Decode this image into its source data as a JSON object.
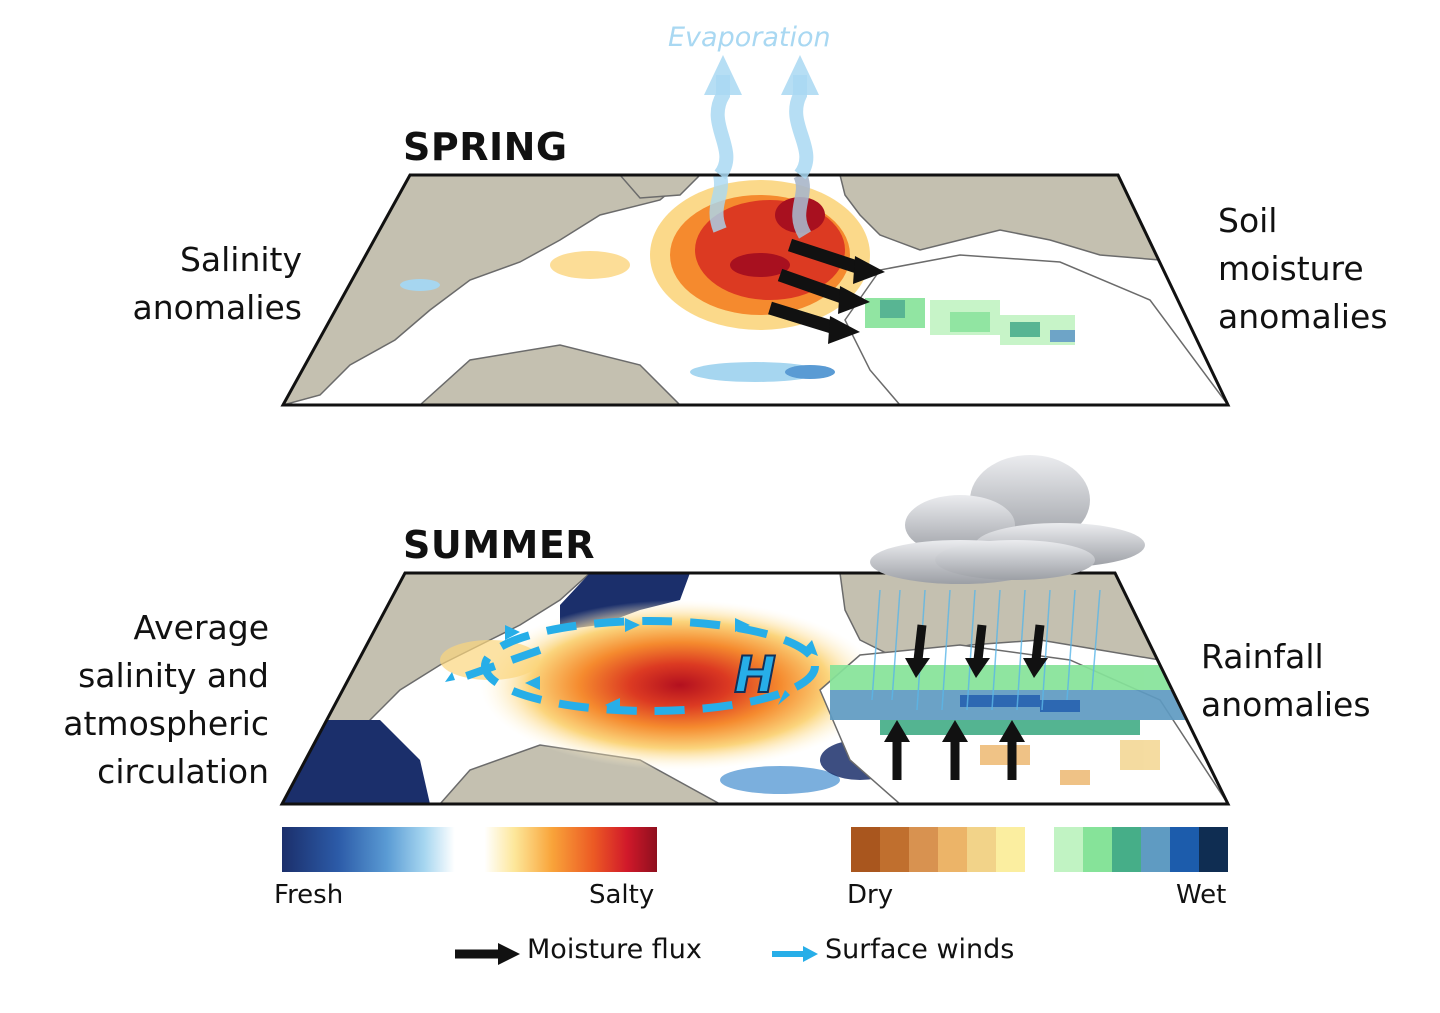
{
  "evaporation": {
    "label": "Evaporation",
    "color": "#a9d8f2"
  },
  "spring": {
    "title": "SPRING",
    "left_label": [
      "Salinity",
      "anomalies"
    ],
    "right_label": [
      "Soil",
      "moisture",
      "anomalies"
    ]
  },
  "summer": {
    "title": "SUMMER",
    "left_label": [
      "Average",
      "salinity and",
      "atmospheric",
      "circulation"
    ],
    "right_label": [
      "Rainfall",
      "anomalies"
    ],
    "high_pressure_symbol": "H"
  },
  "colorbars": {
    "salinity": {
      "min_label": "Fresh",
      "max_label": "Salty",
      "stops": [
        "#1b2f6b",
        "#2c5ba8",
        "#5a9bd4",
        "#a6d6f0",
        "#ffffff",
        "#ffffff",
        "#fde79a",
        "#f9a43a",
        "#ec5a24",
        "#d1192a",
        "#8e0f1e"
      ]
    },
    "soil_rainfall": {
      "min_label": "Dry",
      "max_label": "Wet",
      "steps": [
        "#a9561e",
        "#c06f2e",
        "#d89250",
        "#ecb468",
        "#f2d389",
        "#fbeea0",
        "#ffffff",
        "#c1f3c3",
        "#86e399",
        "#46ae88",
        "#5f9bc2",
        "#1c5cac",
        "#0f2d52"
      ]
    }
  },
  "legend": {
    "items": [
      {
        "label": "Moisture flux",
        "color": "#111111"
      },
      {
        "label": "Surface winds",
        "color": "#27aee8"
      }
    ]
  },
  "colors": {
    "land": "#c4c0b0",
    "ocean": "#ffffff",
    "coast": "#6b6b6b",
    "wind_arrow": "#27aee8",
    "flux_arrow": "#111111"
  }
}
